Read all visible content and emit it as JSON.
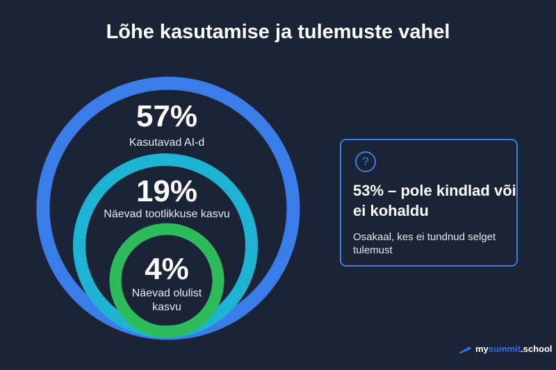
{
  "title": "Lõhe kasutamise ja tulemuste vahel",
  "rings": [
    {
      "value": "57%",
      "label": "Kasutavad AI-d",
      "color": "#3b7de8"
    },
    {
      "value": "19%",
      "label": "Näevad tootlikkuse kasvu",
      "color": "#1eb3d2"
    },
    {
      "value": "4%",
      "label": "Näevad olulist kasvu",
      "label_lines": [
        "Näevad olulist",
        "kasvu"
      ],
      "color": "#2dbb5c"
    }
  ],
  "card": {
    "icon": "question-circle-icon",
    "heading": "53% – pole kindlad või ei kohaldu",
    "description": "Osakaal, kes ei tundnud selget tulemust",
    "accent": "#3b7de8"
  },
  "logo": {
    "prefix": "my",
    "accent": "summit",
    "suffix": ".school"
  }
}
